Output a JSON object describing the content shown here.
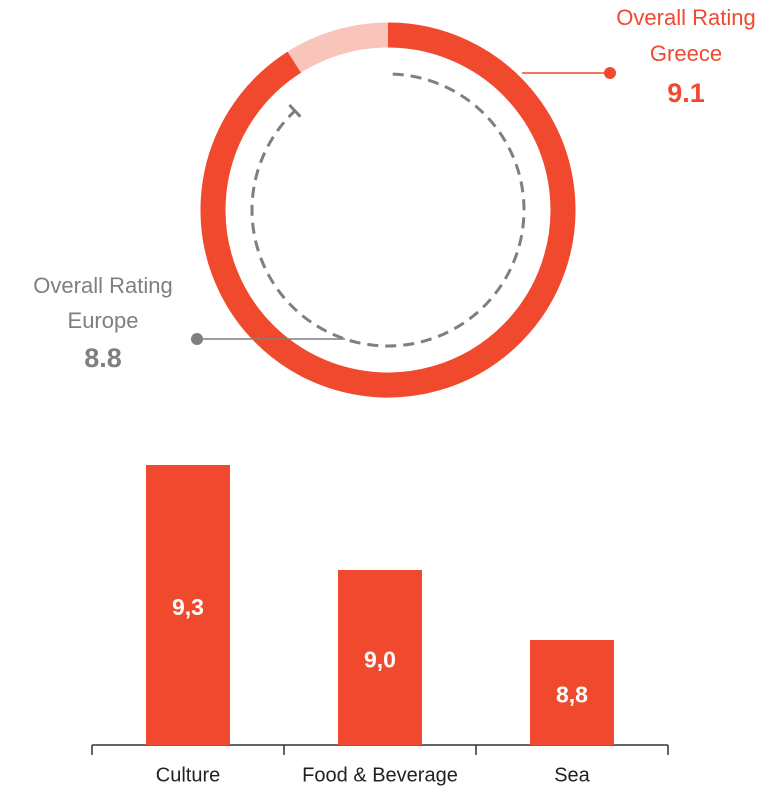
{
  "chart_data": [
    {
      "type": "donut",
      "ylim": [
        0,
        10
      ],
      "track_color": "#f9c4bb",
      "series": [
        {
          "name": "Overall Rating",
          "label": "Greece",
          "values": [
            9.1
          ],
          "color": "#f0492e"
        },
        {
          "name": "Overall Rating",
          "label": "Europe",
          "values": [
            8.8
          ],
          "color": "#7f7f7f"
        }
      ]
    },
    {
      "type": "bar",
      "categories": [
        "Culture",
        "Food & Beverage",
        "Sea"
      ],
      "values": [
        9.3,
        9.0,
        8.8
      ],
      "value_labels": [
        "9,3",
        "9,0",
        "8,8"
      ],
      "color": "#f0492e",
      "ylim": [
        8.5,
        9.4
      ]
    }
  ]
}
